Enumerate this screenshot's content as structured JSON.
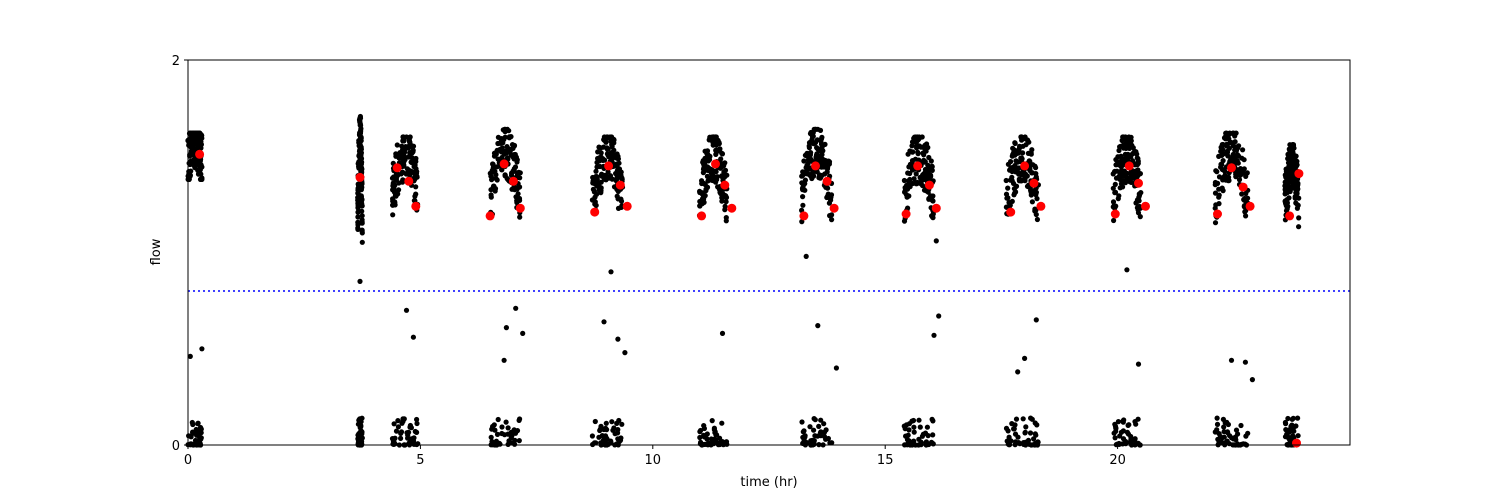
{
  "chart_data": {
    "type": "scatter",
    "title": "",
    "xlabel": "time (hr)",
    "ylabel": "flow",
    "xlim": [
      0,
      25
    ],
    "ylim": [
      0,
      2
    ],
    "xticks": [
      0,
      5,
      10,
      15,
      20
    ],
    "xtick_labels": [
      "0",
      "5",
      "10",
      "15",
      "20"
    ],
    "yticks": [
      0,
      2
    ],
    "ytick_labels": [
      "0",
      "2"
    ],
    "grid": false,
    "threshold_line": {
      "y": 0.8,
      "color": "#0000ff",
      "style": "dotted"
    },
    "colors": {
      "samples": "#000000",
      "means": "#ff0000"
    },
    "cycles": [
      {
        "x": [
          0.0,
          0.3
        ],
        "high": [
          1.38,
          1.62
        ],
        "low": [
          0.0,
          0.55
        ]
      },
      {
        "x": [
          3.65,
          3.75
        ],
        "high": [
          0.85,
          1.78
        ],
        "low": [
          0.0,
          0.22
        ]
      },
      {
        "x": [
          4.4,
          4.95
        ],
        "high": [
          1.17,
          1.6
        ],
        "low": [
          0.0,
          0.72
        ]
      },
      {
        "x": [
          6.5,
          7.15
        ],
        "high": [
          1.08,
          1.64
        ],
        "low": [
          0.0,
          0.72
        ]
      },
      {
        "x": [
          8.7,
          9.35
        ],
        "high": [
          1.1,
          1.6
        ],
        "low": [
          0.0,
          0.65
        ]
      },
      {
        "x": [
          11.0,
          11.6
        ],
        "high": [
          1.1,
          1.6
        ],
        "low": [
          0.0,
          0.6
        ]
      },
      {
        "x": [
          13.2,
          13.85
        ],
        "high": [
          1.08,
          1.64
        ],
        "low": [
          0.0,
          0.62
        ]
      },
      {
        "x": [
          15.4,
          16.05
        ],
        "high": [
          1.1,
          1.6
        ],
        "low": [
          0.0,
          0.68
        ]
      },
      {
        "x": [
          17.6,
          18.3
        ],
        "high": [
          1.1,
          1.6
        ],
        "low": [
          0.0,
          0.66
        ]
      },
      {
        "x": [
          19.9,
          20.5
        ],
        "high": [
          1.1,
          1.6
        ],
        "low": [
          0.0,
          0.42
        ]
      },
      {
        "x": [
          22.1,
          22.8
        ],
        "high": [
          1.1,
          1.62
        ],
        "low": [
          0.0,
          0.45
        ]
      },
      {
        "x": [
          23.6,
          23.9
        ],
        "high": [
          1.08,
          1.56
        ],
        "low": [
          0.0,
          0.3
        ]
      }
    ],
    "outliers": [
      {
        "x": 0.05,
        "y": 0.46
      },
      {
        "x": 0.3,
        "y": 0.5
      },
      {
        "x": 3.7,
        "y": 0.85
      },
      {
        "x": 4.7,
        "y": 0.7
      },
      {
        "x": 4.85,
        "y": 0.56
      },
      {
        "x": 6.85,
        "y": 0.61
      },
      {
        "x": 7.05,
        "y": 0.71
      },
      {
        "x": 7.2,
        "y": 0.58
      },
      {
        "x": 6.8,
        "y": 0.44
      },
      {
        "x": 8.95,
        "y": 0.64
      },
      {
        "x": 9.1,
        "y": 0.9
      },
      {
        "x": 9.25,
        "y": 0.55
      },
      {
        "x": 9.4,
        "y": 0.48
      },
      {
        "x": 11.5,
        "y": 0.58
      },
      {
        "x": 13.3,
        "y": 0.98
      },
      {
        "x": 13.55,
        "y": 0.62
      },
      {
        "x": 13.95,
        "y": 0.4
      },
      {
        "x": 16.05,
        "y": 0.57
      },
      {
        "x": 16.15,
        "y": 0.67
      },
      {
        "x": 16.1,
        "y": 1.06
      },
      {
        "x": 18.25,
        "y": 0.65
      },
      {
        "x": 18.0,
        "y": 0.45
      },
      {
        "x": 17.85,
        "y": 0.38
      },
      {
        "x": 20.2,
        "y": 0.91
      },
      {
        "x": 20.45,
        "y": 0.42
      },
      {
        "x": 22.45,
        "y": 0.44
      },
      {
        "x": 22.75,
        "y": 0.43
      },
      {
        "x": 22.9,
        "y": 0.34
      }
    ],
    "means": [
      {
        "x": 0.25,
        "y": 1.51
      },
      {
        "x": 3.7,
        "y": 1.39
      },
      {
        "x": 4.5,
        "y": 1.44
      },
      {
        "x": 4.75,
        "y": 1.37
      },
      {
        "x": 4.9,
        "y": 1.24
      },
      {
        "x": 6.5,
        "y": 1.19
      },
      {
        "x": 6.8,
        "y": 1.46
      },
      {
        "x": 7.0,
        "y": 1.37
      },
      {
        "x": 7.15,
        "y": 1.23
      },
      {
        "x": 8.75,
        "y": 1.21
      },
      {
        "x": 9.05,
        "y": 1.45
      },
      {
        "x": 9.3,
        "y": 1.35
      },
      {
        "x": 9.45,
        "y": 1.24
      },
      {
        "x": 11.05,
        "y": 1.19
      },
      {
        "x": 11.35,
        "y": 1.46
      },
      {
        "x": 11.55,
        "y": 1.35
      },
      {
        "x": 11.7,
        "y": 1.23
      },
      {
        "x": 13.25,
        "y": 1.19
      },
      {
        "x": 13.5,
        "y": 1.45
      },
      {
        "x": 13.75,
        "y": 1.37
      },
      {
        "x": 13.9,
        "y": 1.23
      },
      {
        "x": 15.45,
        "y": 1.2
      },
      {
        "x": 15.7,
        "y": 1.45
      },
      {
        "x": 15.95,
        "y": 1.35
      },
      {
        "x": 16.1,
        "y": 1.23
      },
      {
        "x": 17.7,
        "y": 1.21
      },
      {
        "x": 18.0,
        "y": 1.45
      },
      {
        "x": 18.2,
        "y": 1.36
      },
      {
        "x": 18.35,
        "y": 1.24
      },
      {
        "x": 19.95,
        "y": 1.2
      },
      {
        "x": 20.25,
        "y": 1.45
      },
      {
        "x": 20.45,
        "y": 1.36
      },
      {
        "x": 20.6,
        "y": 1.24
      },
      {
        "x": 22.15,
        "y": 1.2
      },
      {
        "x": 22.45,
        "y": 1.44
      },
      {
        "x": 22.7,
        "y": 1.34
      },
      {
        "x": 22.85,
        "y": 1.24
      },
      {
        "x": 23.7,
        "y": 1.19
      },
      {
        "x": 23.9,
        "y": 1.41
      },
      {
        "x": 23.85,
        "y": 0.01
      }
    ]
  }
}
